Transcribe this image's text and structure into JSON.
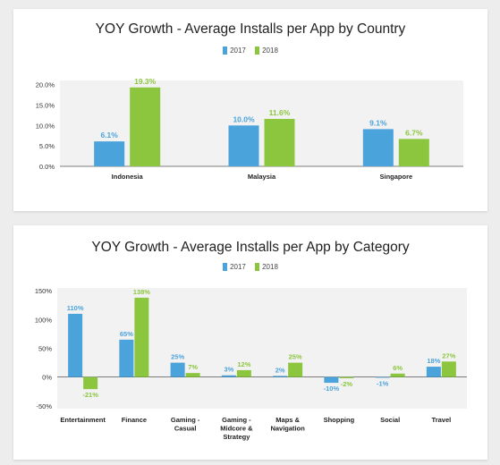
{
  "colors": {
    "series_2017": "#4ba3db",
    "series_2018": "#8cc63f",
    "plot_bg": "#f2f2f2",
    "text": "#333333"
  },
  "chart_data": [
    {
      "type": "bar",
      "title": "YOY Growth - Average Installs per App by Country",
      "xlabel": "",
      "ylabel": "",
      "categories": [
        "Indonesia",
        "Malaysia",
        "Singapore"
      ],
      "series": [
        {
          "name": "2017",
          "values": [
            6.1,
            10.0,
            9.1
          ],
          "labels": [
            "6.1%",
            "10.0%",
            "9.1%"
          ]
        },
        {
          "name": "2018",
          "values": [
            19.3,
            11.6,
            6.7
          ],
          "labels": [
            "19.3%",
            "11.6%",
            "6.7%"
          ]
        }
      ],
      "yticks": [
        20,
        15,
        10,
        5,
        0
      ],
      "ytick_labels": [
        "20.0%",
        "15.0%",
        "10.0%",
        "5.0%",
        "0.0%"
      ],
      "ylim": [
        0,
        21
      ],
      "grid": false,
      "legend": "top-center"
    },
    {
      "type": "bar",
      "title": "YOY Growth - Average Installs per App by Category",
      "xlabel": "",
      "ylabel": "",
      "categories": [
        "Entertainment",
        "Finance",
        "Gaming - Casual",
        "Gaming - Midcore & Strategy",
        "Maps & Navigation",
        "Shopping",
        "Social",
        "Travel"
      ],
      "category_lines": [
        [
          "Entertainment"
        ],
        [
          "Finance"
        ],
        [
          "Gaming -",
          "Casual"
        ],
        [
          "Gaming -",
          "Midcore &",
          "Strategy"
        ],
        [
          "Maps &",
          "Navigation"
        ],
        [
          "Shopping"
        ],
        [
          "Social"
        ],
        [
          "Travel"
        ]
      ],
      "series": [
        {
          "name": "2017",
          "values": [
            110,
            65,
            25,
            3,
            2,
            -10,
            -1,
            18
          ],
          "labels": [
            "110%",
            "65%",
            "25%",
            "3%",
            "2%",
            "-10%",
            "-1%",
            "18%"
          ]
        },
        {
          "name": "2018",
          "values": [
            -21,
            138,
            7,
            12,
            25,
            -2,
            6,
            27
          ],
          "labels": [
            "-21%",
            "138%",
            "7%",
            "12%",
            "25%",
            "-2%",
            "6%",
            "27%"
          ]
        }
      ],
      "yticks": [
        150,
        100,
        50,
        0,
        -50
      ],
      "ytick_labels": [
        "150%",
        "100%",
        "50%",
        "0%",
        "-50%"
      ],
      "ylim": [
        -55,
        155
      ],
      "grid": false,
      "legend": "top-center"
    }
  ]
}
